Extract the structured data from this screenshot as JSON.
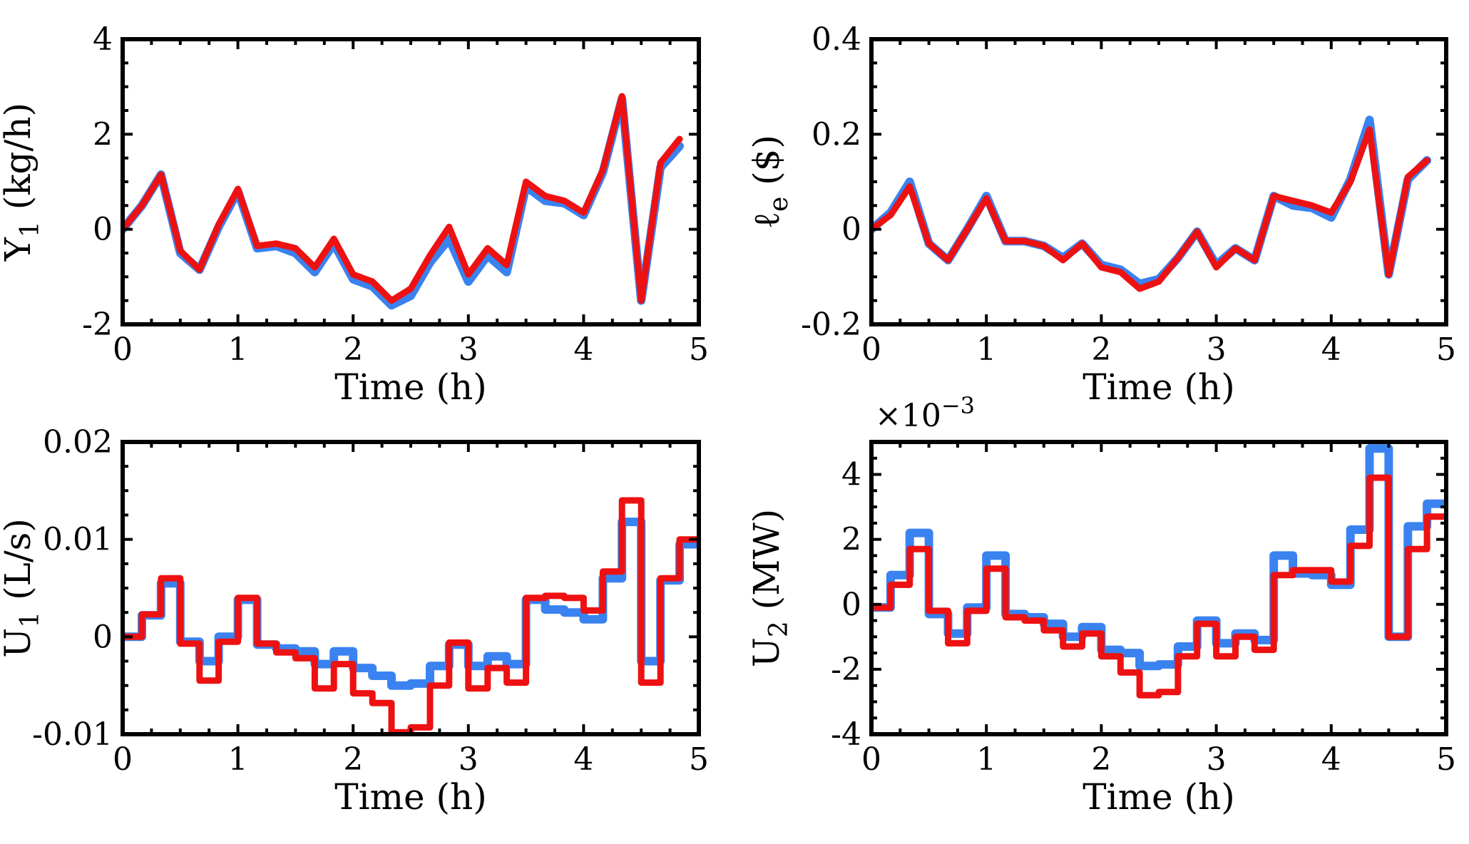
{
  "colors": {
    "blue": "#3a82f0",
    "red": "#ee1111"
  },
  "chart_data": [
    {
      "id": "y1",
      "type": "line",
      "xlabel": "Time (h)",
      "ylabel": "Y",
      "ylabel_sub": "1",
      "ylabel_unit": " (kg/h)",
      "xlim": [
        0,
        5
      ],
      "ylim": [
        -2,
        4
      ],
      "xticks": [
        0,
        1,
        2,
        3,
        4,
        5
      ],
      "xtick_labels": [
        "0",
        "1",
        "2",
        "3",
        "4",
        "5"
      ],
      "yticks": [
        -2,
        0,
        2,
        4
      ],
      "ytick_labels": [
        "-2",
        "0",
        "2",
        "4"
      ],
      "x": [
        0,
        0.167,
        0.333,
        0.5,
        0.667,
        0.833,
        1.0,
        1.167,
        1.333,
        1.5,
        1.667,
        1.833,
        2.0,
        2.167,
        2.333,
        2.5,
        2.667,
        2.833,
        3.0,
        3.167,
        3.333,
        3.5,
        3.667,
        3.833,
        4.0,
        4.167,
        4.333,
        4.5,
        4.667,
        4.833
      ],
      "series": [
        {
          "name": "blue",
          "color": "#3a82f0",
          "values": [
            0.0,
            0.5,
            1.15,
            -0.5,
            -0.85,
            0.05,
            0.8,
            -0.4,
            -0.35,
            -0.5,
            -0.9,
            -0.3,
            -1.05,
            -1.2,
            -1.6,
            -1.4,
            -0.7,
            -0.2,
            -1.1,
            -0.55,
            -0.9,
            0.9,
            0.6,
            0.55,
            0.3,
            1.2,
            2.75,
            -1.5,
            1.3,
            1.75
          ]
        },
        {
          "name": "red",
          "color": "#ee1111",
          "values": [
            0.0,
            0.5,
            1.15,
            -0.45,
            -0.85,
            0.1,
            0.85,
            -0.35,
            -0.3,
            -0.4,
            -0.8,
            -0.2,
            -0.95,
            -1.1,
            -1.5,
            -1.25,
            -0.55,
            0.05,
            -0.95,
            -0.4,
            -0.75,
            1.0,
            0.7,
            0.6,
            0.35,
            1.25,
            2.8,
            -1.5,
            1.4,
            1.9
          ]
        }
      ]
    },
    {
      "id": "le",
      "type": "line",
      "xlabel": "Time (h)",
      "ylabel": "ℓ",
      "ylabel_sub": "e",
      "ylabel_unit": " ($)",
      "xlim": [
        0,
        5
      ],
      "ylim": [
        -0.2,
        0.4
      ],
      "xticks": [
        0,
        1,
        2,
        3,
        4,
        5
      ],
      "xtick_labels": [
        "0",
        "1",
        "2",
        "3",
        "4",
        "5"
      ],
      "yticks": [
        -0.2,
        0,
        0.2,
        0.4
      ],
      "ytick_labels": [
        "-0.2",
        "0",
        "0.2",
        "0.4"
      ],
      "x": [
        0,
        0.167,
        0.333,
        0.5,
        0.667,
        0.833,
        1.0,
        1.167,
        1.333,
        1.5,
        1.667,
        1.833,
        2.0,
        2.167,
        2.333,
        2.5,
        2.667,
        2.833,
        3.0,
        3.167,
        3.333,
        3.5,
        3.667,
        3.833,
        4.0,
        4.167,
        4.333,
        4.5,
        4.667,
        4.833
      ],
      "series": [
        {
          "name": "blue",
          "color": "#3a82f0",
          "values": [
            0.0,
            0.035,
            0.1,
            -0.03,
            -0.065,
            0.0,
            0.07,
            -0.025,
            -0.025,
            -0.035,
            -0.06,
            -0.03,
            -0.075,
            -0.085,
            -0.115,
            -0.105,
            -0.06,
            -0.005,
            -0.075,
            -0.04,
            -0.065,
            0.07,
            0.05,
            0.045,
            0.025,
            0.105,
            0.23,
            -0.095,
            0.105,
            0.145
          ]
        },
        {
          "name": "red",
          "color": "#ee1111",
          "values": [
            0.0,
            0.03,
            0.09,
            -0.03,
            -0.065,
            0.0,
            0.065,
            -0.025,
            -0.025,
            -0.035,
            -0.065,
            -0.03,
            -0.08,
            -0.09,
            -0.125,
            -0.11,
            -0.06,
            -0.005,
            -0.08,
            -0.04,
            -0.065,
            0.07,
            0.06,
            0.05,
            0.035,
            0.1,
            0.21,
            -0.095,
            0.11,
            0.145
          ]
        }
      ]
    },
    {
      "id": "u1",
      "type": "line",
      "step": true,
      "xlabel": "Time (h)",
      "ylabel": "U",
      "ylabel_sub": "1",
      "ylabel_unit": " (L/s)",
      "xlim": [
        0,
        5
      ],
      "ylim": [
        -0.01,
        0.02
      ],
      "xticks": [
        0,
        1,
        2,
        3,
        4,
        5
      ],
      "xtick_labels": [
        "0",
        "1",
        "2",
        "3",
        "4",
        "5"
      ],
      "yticks": [
        -0.01,
        0,
        0.01,
        0.02
      ],
      "ytick_labels": [
        "-0.01",
        "0",
        "0.01",
        "0.02"
      ],
      "x": [
        0,
        0.167,
        0.333,
        0.5,
        0.667,
        0.833,
        1.0,
        1.167,
        1.333,
        1.5,
        1.667,
        1.833,
        2.0,
        2.167,
        2.333,
        2.5,
        2.667,
        2.833,
        3.0,
        3.167,
        3.333,
        3.5,
        3.667,
        3.833,
        4.0,
        4.167,
        4.333,
        4.5,
        4.667,
        4.833
      ],
      "series": [
        {
          "name": "blue",
          "color": "#3a82f0",
          "values": [
            0.0,
            0.0022,
            0.0055,
            -0.0005,
            -0.0025,
            0.0,
            0.0038,
            -0.0008,
            -0.0012,
            -0.0015,
            -0.0028,
            -0.0015,
            -0.0032,
            -0.004,
            -0.005,
            -0.0048,
            -0.003,
            -0.0008,
            -0.003,
            -0.002,
            -0.0028,
            0.0038,
            0.0028,
            0.0025,
            0.0018,
            0.006,
            0.0118,
            -0.0025,
            0.0058,
            0.0095
          ]
        },
        {
          "name": "red",
          "color": "#ee1111",
          "values": [
            0.0,
            0.0023,
            0.006,
            -0.0007,
            -0.0045,
            -0.0005,
            0.004,
            -0.0007,
            -0.0016,
            -0.0022,
            -0.0053,
            -0.0028,
            -0.0058,
            -0.0068,
            -0.0098,
            -0.0093,
            -0.005,
            -0.0006,
            -0.0053,
            -0.0032,
            -0.0047,
            0.004,
            0.0042,
            0.004,
            0.0027,
            0.0067,
            0.014,
            -0.0047,
            0.006,
            0.01
          ]
        }
      ]
    },
    {
      "id": "u2",
      "type": "line",
      "step": true,
      "xlabel": "Time (h)",
      "ylabel": "U",
      "ylabel_sub": "2",
      "ylabel_unit": " (MW)",
      "multiplier_base": "×10",
      "multiplier_exp": "−3",
      "xlim": [
        0,
        5
      ],
      "ylim": [
        -4,
        5
      ],
      "xticks": [
        0,
        1,
        2,
        3,
        4,
        5
      ],
      "xtick_labels": [
        "0",
        "1",
        "2",
        "3",
        "4",
        "5"
      ],
      "yticks": [
        -4,
        -2,
        0,
        2,
        4
      ],
      "ytick_labels": [
        "-4",
        "-2",
        "0",
        "2",
        "4"
      ],
      "x": [
        0,
        0.167,
        0.333,
        0.5,
        0.667,
        0.833,
        1.0,
        1.167,
        1.333,
        1.5,
        1.667,
        1.833,
        2.0,
        2.167,
        2.333,
        2.5,
        2.667,
        2.833,
        3.0,
        3.167,
        3.333,
        3.5,
        3.667,
        3.833,
        4.0,
        4.167,
        4.333,
        4.5,
        4.667,
        4.833
      ],
      "series": [
        {
          "name": "blue",
          "color": "#3a82f0",
          "values": [
            -0.1,
            0.9,
            2.2,
            -0.3,
            -0.9,
            -0.1,
            1.5,
            -0.3,
            -0.4,
            -0.6,
            -1.0,
            -0.7,
            -1.4,
            -1.5,
            -1.9,
            -1.85,
            -1.3,
            -0.5,
            -1.2,
            -0.9,
            -1.1,
            1.5,
            0.95,
            0.9,
            0.6,
            2.3,
            4.8,
            -1.0,
            2.4,
            3.1
          ]
        },
        {
          "name": "red",
          "color": "#ee1111",
          "values": [
            -0.1,
            0.6,
            1.7,
            -0.2,
            -1.2,
            -0.2,
            1.1,
            -0.4,
            -0.5,
            -0.8,
            -1.3,
            -0.9,
            -1.6,
            -2.1,
            -2.8,
            -2.7,
            -1.6,
            -0.6,
            -1.6,
            -1.0,
            -1.4,
            0.9,
            1.05,
            1.05,
            0.7,
            1.8,
            3.9,
            -1.0,
            1.7,
            2.7
          ]
        }
      ]
    }
  ]
}
